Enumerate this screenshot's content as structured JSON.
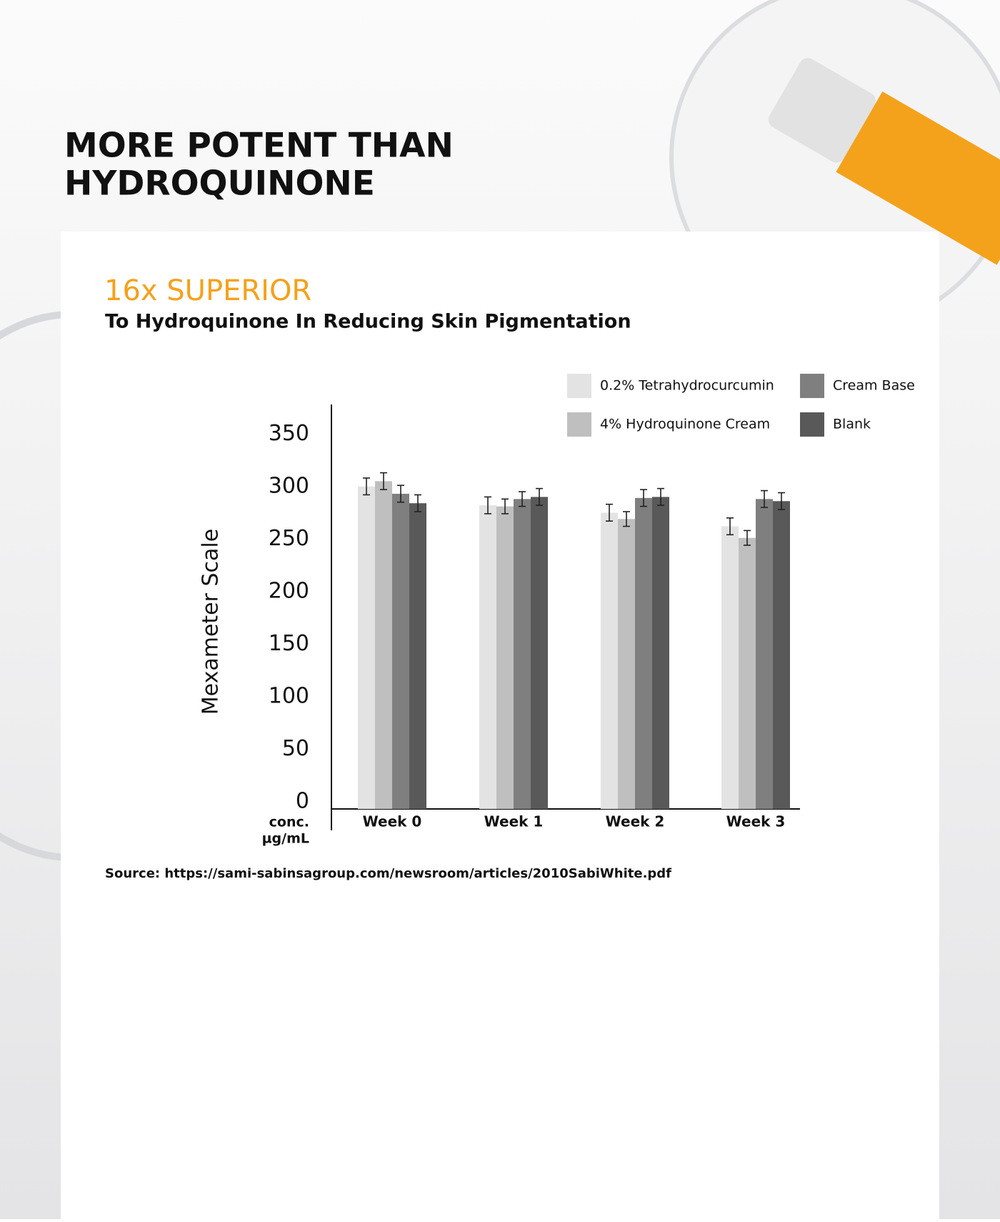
{
  "heading": [
    "MORE POTENT THAN",
    "HYDROQUINONE"
  ],
  "chart_data": {
    "type": "bar",
    "title": "16x SUPERIOR",
    "subtitle": "To Hydroquinone In Reducing Skin Pigmentation",
    "ylabel": "Mexameter Scale",
    "xlabel": [
      "conc.",
      "µg/mL"
    ],
    "categories": [
      "Week 0",
      "Week 1",
      "Week 2",
      "Week 3"
    ],
    "series": [
      {
        "name": "0.2% Tetrahydrocurcumin",
        "color": "#e3e3e3",
        "values": [
          307,
          289,
          282,
          269
        ],
        "errors": [
          8,
          8,
          8,
          8
        ]
      },
      {
        "name": "4% Hydroquinone Cream",
        "color": "#c0bfc0",
        "values": [
          312,
          288,
          276,
          258
        ],
        "errors": [
          8,
          7,
          7,
          7
        ]
      },
      {
        "name": "Cream Base",
        "color": "#7f7f7f",
        "values": [
          300,
          295,
          296,
          295
        ],
        "errors": [
          8,
          7,
          8,
          8
        ]
      },
      {
        "name": "Blank",
        "color": "#595959",
        "values": [
          291,
          297,
          297,
          293
        ],
        "errors": [
          8,
          8,
          8,
          8
        ]
      }
    ],
    "ylim": [
      0,
      385
    ],
    "yticks": [
      0,
      50,
      100,
      150,
      200,
      250,
      300,
      350
    ],
    "grid": false,
    "legend": "top-right",
    "source": "Source: https://sami-sabinsagroup.com/newsroom/articles/2010SabiWhite.pdf"
  }
}
